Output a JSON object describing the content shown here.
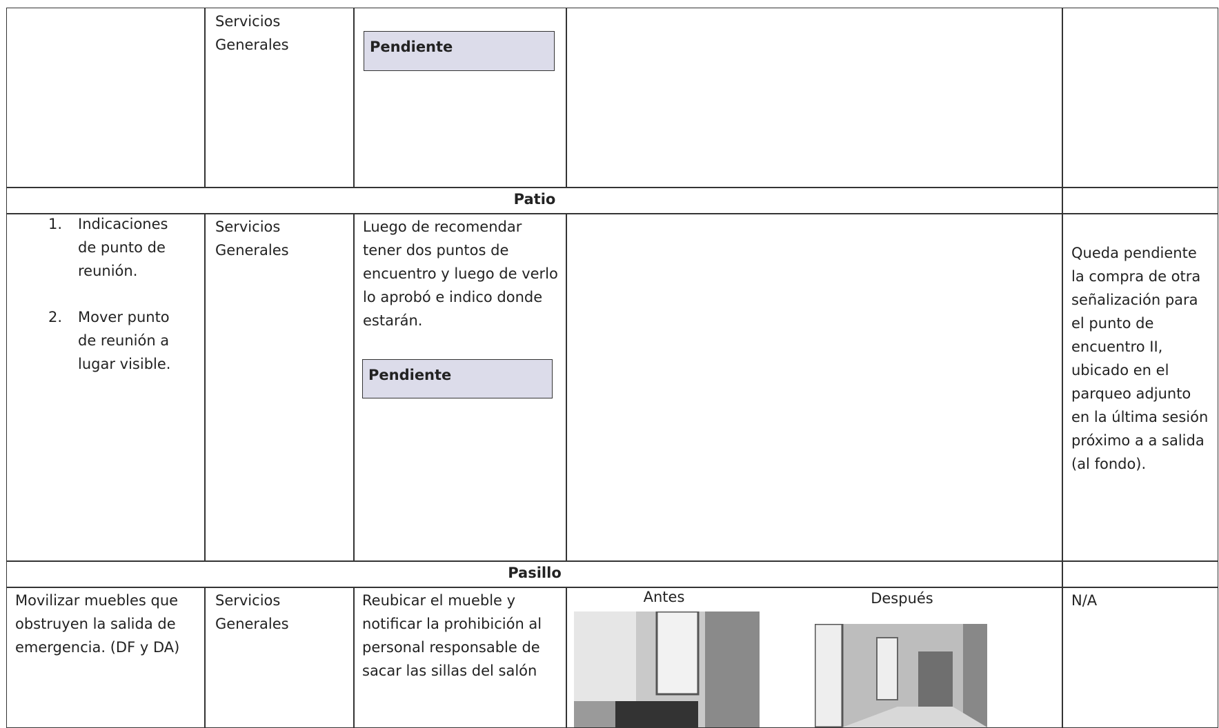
{
  "rows": [
    {
      "cells": [
        "",
        "Servicios Generales",
        "",
        "",
        ""
      ],
      "status": "Pendiente"
    },
    {
      "section": "Patio"
    },
    {
      "items": [
        {
          "number": "1.",
          "text": "Indicaciones de punto de reunión."
        },
        {
          "number": "2.",
          "text": "Mover punto de reunión a lugar visible."
        }
      ],
      "cells": [
        "",
        "Servicios Generales",
        "Luego de recomendar tener dos puntos de encuentro y luego de verlo lo aprobó e indico donde estarán.",
        "",
        "Queda pendiente la compra de otra señalización para el punto de encuentro II, ubicado en el parqueo adjunto en la última sesión próximo a a salida (al fondo)."
      ],
      "status": "Pendiente"
    },
    {
      "section": "Pasillo"
    },
    {
      "cells": [
        "Movilizar muebles que obstruyen la salida de emergencia. (DF y DA)",
        "Servicios Generales",
        "Reubicar el mueble y notificar la prohibición al personal responsable de sacar las sillas del salón",
        "",
        "N/A"
      ],
      "photos": [
        "Antes",
        "Después"
      ]
    }
  ]
}
